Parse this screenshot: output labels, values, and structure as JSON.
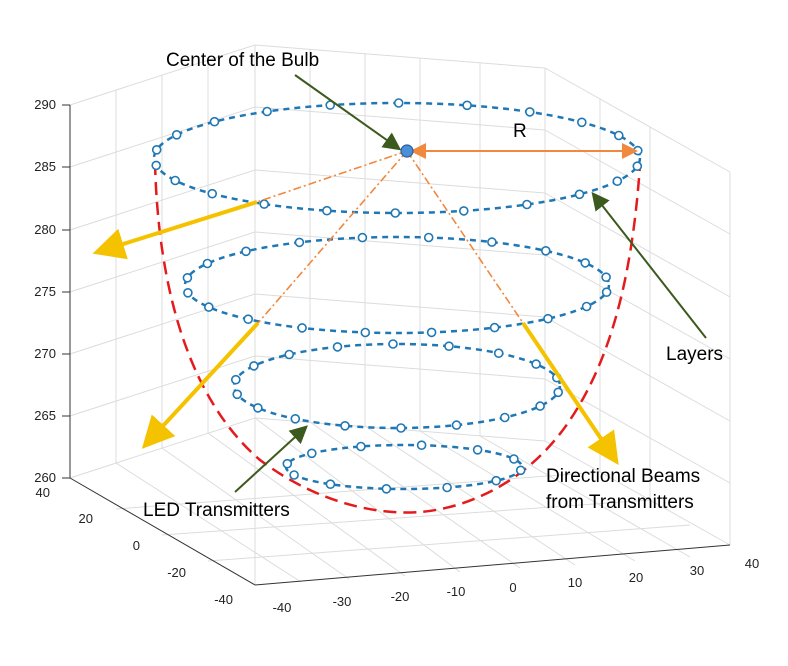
{
  "annotations": {
    "center": "Center of the Bulb",
    "radius": "R",
    "layers": "Layers",
    "led": "LED Transmitters",
    "beams_line1": "Directional Beams",
    "beams_line2": "from Transmitters"
  },
  "axes": {
    "z_ticks": [
      "290",
      "285",
      "280",
      "275",
      "270",
      "265",
      "260"
    ],
    "y_ticks": [
      "40",
      "20",
      "0",
      "-20",
      "-40"
    ],
    "x_ticks": [
      "-40",
      "-30",
      "-20",
      "-10",
      "0",
      "10",
      "20",
      "30",
      "40"
    ]
  },
  "colors": {
    "layer": "#1f77b4",
    "profile": "#e41a1c",
    "beam": "#f5c200",
    "radius_arrow": "#f0883e",
    "pointer": "#3d5a1e",
    "axis": "#333333",
    "grid": "#dcdcdc"
  }
}
